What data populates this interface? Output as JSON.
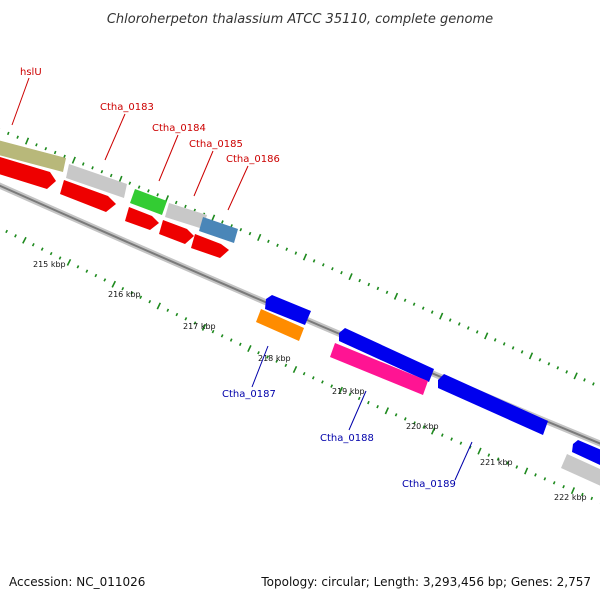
{
  "title": "Chloroherpeton thalassium ATCC 35110, complete genome",
  "footer": {
    "accession": "Accession: NC_011026",
    "summary": "Topology: circular; Length: 3,293,456 bp; Genes: 2,757"
  },
  "colors": {
    "backbone": "#8a8a8a",
    "tick": "#1e8a1e",
    "label_forward": "#cc0000",
    "label_reverse": "#0000aa"
  },
  "kbp_labels": [
    "215 kbp",
    "216 kbp",
    "217 kbp",
    "218 kbp",
    "219 kbp",
    "220 kbp",
    "221 kbp",
    "222 kbp"
  ],
  "genes": [
    {
      "label": "hslU",
      "color": "#b8b87a",
      "strand": "forward"
    },
    {
      "label": "Ctha_0183",
      "color": "#c8c8c8",
      "strand": "forward"
    },
    {
      "label": "Ctha_0184",
      "color": "#33cc33",
      "strand": "forward"
    },
    {
      "label": "Ctha_0185",
      "color": "#c8c8c8",
      "strand": "forward"
    },
    {
      "label": "Ctha_0186",
      "color": "#4a86b8",
      "strand": "forward"
    },
    {
      "label": "Ctha_0187",
      "color": "#ff8c00",
      "strand": "reverse"
    },
    {
      "label": "Ctha_0188",
      "color": "#ff1493",
      "strand": "reverse"
    },
    {
      "label": "Ctha_0189",
      "color": "#0000ee",
      "strand": "reverse"
    }
  ]
}
